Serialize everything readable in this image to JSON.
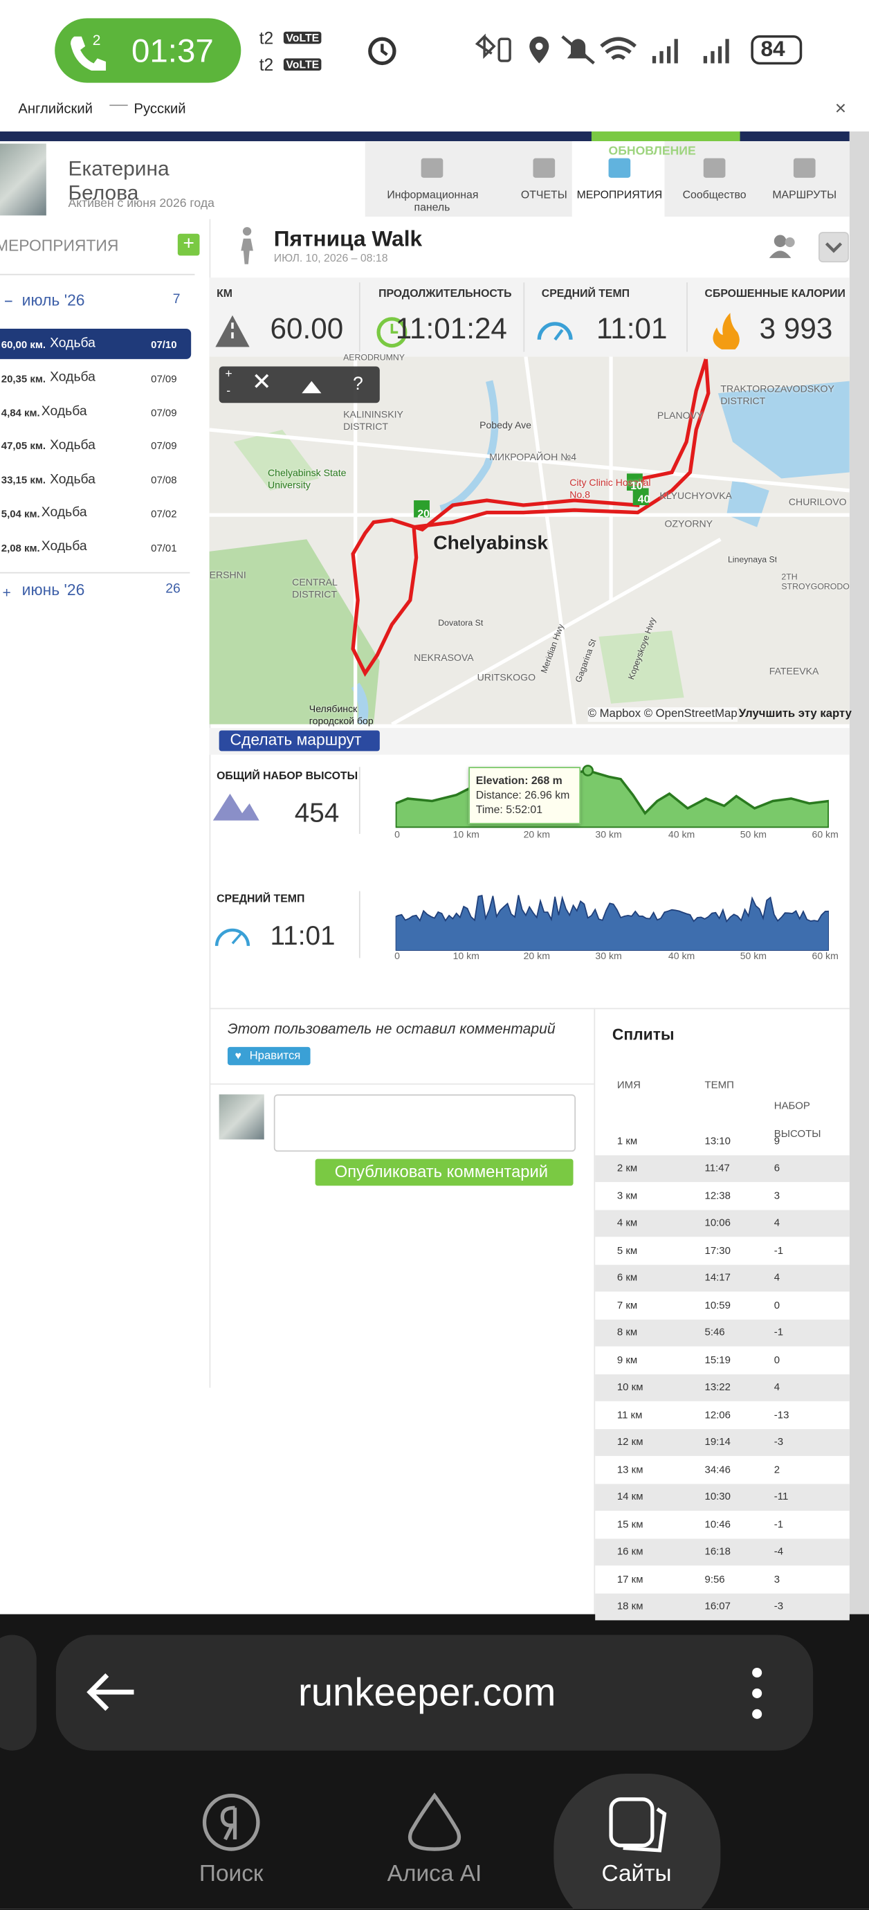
{
  "status_bar": {
    "call_count": "2",
    "time": "01:37",
    "sim": [
      "t2",
      "t2"
    ],
    "volte": "VoLTE",
    "battery": "84"
  },
  "translate_bar": {
    "from": "Английский",
    "to": "Русский"
  },
  "profile": {
    "name": "Екатерина Белова",
    "since": "Активен с июня 2026 года"
  },
  "update_banner": "ОБНОВЛЕНИЕ",
  "nav": [
    "Информационная панель",
    "ОТЧЕТЫ",
    "МЕРОПРИЯТИЯ",
    "Сообщество",
    "МАРШРУТЫ"
  ],
  "sidebar": {
    "title": "МЕРОПРИЯТИЯ",
    "months": [
      {
        "label": "июль '26",
        "count": "7"
      },
      {
        "label": "июнь '26",
        "count": "26"
      }
    ],
    "activities": [
      {
        "distance": "60,00 км.",
        "type": "Ходьба",
        "date": "07/10"
      },
      {
        "distance": "20,35 км.",
        "type": "Ходьба",
        "date": "07/09"
      },
      {
        "distance": "4,84 км.",
        "type": "Ходьба",
        "date": "07/09"
      },
      {
        "distance": "47,05 км.",
        "type": "Ходьба",
        "date": "07/09"
      },
      {
        "distance": "33,15 км.",
        "type": "Ходьба",
        "date": "07/08"
      },
      {
        "distance": "5,04 км.",
        "type": "Ходьба",
        "date": "07/02"
      },
      {
        "distance": "2,08 км.",
        "type": "Ходьба",
        "date": "07/01"
      }
    ]
  },
  "activity": {
    "title": "Пятница Walk",
    "date": "ИЮЛ. 10, 2026 – 08:18"
  },
  "stats": [
    {
      "label": "КМ",
      "value": "60.00"
    },
    {
      "label": "ПРОДОЛЖИТЕЛЬНОСТЬ",
      "value": "11:01:24"
    },
    {
      "label": "СРЕДНИЙ ТЕМП",
      "value": "11:01"
    },
    {
      "label": "СБРОШЕННЫЕ КАЛОРИИ",
      "value": "3 993"
    }
  ],
  "map": {
    "labels": [
      "AERODRUMNY",
      "KALININSKIY DISTRICT",
      "Pobedy Ave",
      "МИКРОРАЙОН №4",
      "Chelyabinsk State University",
      "City Clinic Hospital No.8",
      "KLYUCHYOVKA",
      "Chelyabinsk",
      "TRAKTOROZAVODSKOY DISTRICT",
      "PLANOVY",
      "CHURILOVO",
      "OZYORNY",
      "Lineynaya St",
      "CENTRAL DISTRICT",
      "ERSHNI",
      "Dovatora St",
      "NEKRASOVA",
      "URITSKOGO",
      "Meridian Hwy",
      "Gagarina St",
      "Kopeyskoye Hwy",
      "FATEEVKA",
      "2TH STROYGORODOK",
      "Челябинск городской бор"
    ],
    "markers": [
      "20",
      "10",
      "40"
    ],
    "help": "?",
    "attribution": "© Mapbox © OpenStreetMap",
    "improve": "Улучшить эту карту"
  },
  "route_button": "Сделать маршрут",
  "elevation": {
    "label": "ОБЩИЙ НАБОР ВЫСОТЫ",
    "value": "454",
    "tooltip": [
      "Elevation: 268 m",
      "Distance: 26.96 km",
      "Time: 5:52:01"
    ],
    "xticks": [
      "0",
      "10 km",
      "20 km",
      "30 km",
      "40 km",
      "50 km",
      "60 km"
    ]
  },
  "pace": {
    "label": "СРЕДНИЙ ТЕМП",
    "value": "11:01",
    "xticks": [
      "0",
      "10 km",
      "20 km",
      "30 km",
      "40 km",
      "50 km",
      "60 km"
    ]
  },
  "comment": {
    "empty": "Этот пользователь не оставил комментарий",
    "like": "Нравится",
    "publish": "Опубликовать комментарий"
  },
  "splits": {
    "title": "Сплиты",
    "headers": [
      "ИМЯ",
      "ТЕМП",
      "НАБОР ВЫСОТЫ"
    ],
    "rows": [
      [
        "1 км",
        "13:10",
        "9"
      ],
      [
        "2 км",
        "11:47",
        "6"
      ],
      [
        "3 км",
        "12:38",
        "3"
      ],
      [
        "4 км",
        "10:06",
        "4"
      ],
      [
        "5 км",
        "17:30",
        "-1"
      ],
      [
        "6 км",
        "14:17",
        "4"
      ],
      [
        "7 км",
        "10:59",
        "0"
      ],
      [
        "8 км",
        "5:46",
        "-1"
      ],
      [
        "9 км",
        "15:19",
        "0"
      ],
      [
        "10 км",
        "13:22",
        "4"
      ],
      [
        "11 км",
        "12:06",
        "-13"
      ],
      [
        "12 км",
        "19:14",
        "-3"
      ],
      [
        "13 км",
        "34:46",
        "2"
      ],
      [
        "14 км",
        "10:30",
        "-11"
      ],
      [
        "15 км",
        "10:46",
        "-1"
      ],
      [
        "16 км",
        "16:18",
        "-4"
      ],
      [
        "17 км",
        "9:56",
        "3"
      ],
      [
        "18 км",
        "16:07",
        "-3"
      ]
    ]
  },
  "browser": {
    "url": "runkeeper.com"
  },
  "bottom_nav": [
    "Поиск",
    "Алиса AI",
    "Сайты"
  ]
}
